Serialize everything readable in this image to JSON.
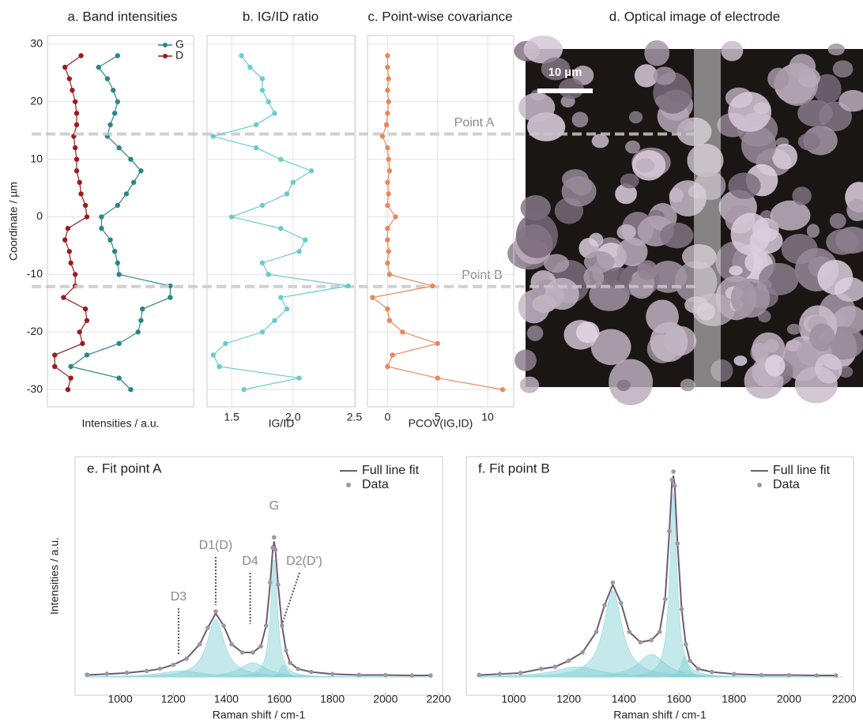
{
  "chart_data": [
    {
      "type": "profile",
      "title": "a. Band intensities",
      "ylabel": "Coordinate / µm",
      "xlabel": "Intensities / a.u.",
      "y": [
        28,
        26,
        24,
        22,
        20,
        18,
        16,
        14,
        12,
        10,
        8,
        6,
        4,
        2,
        0,
        -2,
        -4,
        -6,
        -8,
        -10,
        -12,
        -14,
        -16,
        -18,
        -20,
        -22,
        -24,
        -26,
        -28,
        -30
      ],
      "series": [
        {
          "name": "G",
          "color": "#2a8686",
          "values": [
            4.8,
            3.5,
            4.1,
            4.5,
            4.8,
            4.6,
            4.3,
            4.1,
            4.9,
            5.7,
            6.4,
            5.9,
            5.4,
            4.8,
            3.7,
            3.7,
            4.3,
            4.6,
            4.8,
            4.9,
            8.4,
            8.4,
            6.5,
            6.4,
            6.2,
            4.9,
            2.7,
            1.6,
            4.9,
            5.7
          ]
        },
        {
          "name": "D",
          "color": "#9a1d1d",
          "values": [
            2.3,
            1.2,
            1.5,
            1.7,
            1.9,
            2.0,
            2.0,
            1.8,
            1.9,
            2.0,
            2.0,
            2.2,
            2.3,
            2.6,
            2.7,
            1.4,
            1.2,
            1.5,
            1.6,
            1.9,
            1.9,
            1.1,
            2.6,
            2.7,
            2.2,
            2.4,
            0.5,
            0.5,
            1.6,
            1.4
          ]
        }
      ],
      "xlim": [
        0,
        10
      ],
      "ylim": [
        -33,
        31.5
      ],
      "yticks": [
        -30,
        -20,
        -10,
        0,
        10,
        20,
        30
      ],
      "grid": true,
      "legend": "top-right",
      "annotations": [
        {
          "text": "Point A",
          "y": 14.4
        },
        {
          "text": "Point B",
          "y": -12.1
        }
      ]
    },
    {
      "type": "profile",
      "title": "b. IG/ID ratio",
      "xlabel": "IG/ID",
      "y": [
        28,
        26,
        24,
        22,
        20,
        18,
        16,
        14,
        12,
        10,
        8,
        6,
        4,
        2,
        0,
        -2,
        -4,
        -6,
        -8,
        -10,
        -12,
        -14,
        -16,
        -18,
        -20,
        -22,
        -24,
        -26,
        -28,
        -30
      ],
      "series": [
        {
          "color": "#6ccacd",
          "values": [
            1.58,
            1.65,
            1.75,
            1.75,
            1.8,
            1.85,
            1.7,
            1.35,
            1.7,
            1.9,
            2.15,
            2.0,
            1.95,
            1.75,
            1.5,
            1.9,
            2.1,
            2.05,
            1.75,
            1.8,
            2.45,
            1.9,
            1.95,
            1.85,
            1.75,
            1.45,
            1.35,
            1.4,
            2.05,
            1.6
          ]
        }
      ],
      "xlim": [
        1.3,
        2.51
      ],
      "xticks": [
        {
          "value": 1.5,
          "label": "1.5"
        },
        {
          "value": 2,
          "label": "2.0"
        },
        {
          "value": 2.5,
          "label": "2.5"
        }
      ],
      "ylim": [
        -33,
        31.5
      ],
      "grid": true
    },
    {
      "type": "profile",
      "title": "c. Point-wise covariance",
      "xlabel": "PCOV(IG,ID)",
      "y": [
        28,
        26,
        24,
        22,
        20,
        18,
        16,
        14,
        12,
        10,
        8,
        6,
        4,
        2,
        0,
        -2,
        -4,
        -6,
        -8,
        -10,
        -12,
        -14,
        -16,
        -18,
        -20,
        -22,
        -24,
        -26,
        -28,
        -30
      ],
      "series": [
        {
          "color": "#e9875a",
          "values": [
            0,
            0,
            0.1,
            0,
            0.1,
            0,
            -0.1,
            -0.5,
            0,
            0.1,
            0.2,
            0,
            0.1,
            0,
            0.8,
            0,
            0,
            0.1,
            0,
            0.2,
            4.5,
            -1.5,
            0,
            0.2,
            1.5,
            5,
            0.5,
            0,
            5,
            11.5
          ]
        }
      ],
      "xlim": [
        -2,
        12.6
      ],
      "xticks": [
        0,
        5,
        10
      ],
      "ylim": [
        -33,
        31.5
      ],
      "grid": true
    },
    {
      "type": "spectrum",
      "title": "e. Fit point A",
      "xlabel": "Raman shift / cm-1",
      "ylabel": "Intensities / a.u.",
      "x": [
        875,
        950,
        1025,
        1100,
        1150,
        1200,
        1250,
        1300,
        1330,
        1360,
        1390,
        1420,
        1460,
        1500,
        1530,
        1550,
        1565,
        1575,
        1580,
        1585,
        1595,
        1610,
        1625,
        1640,
        1670,
        1720,
        1800,
        1900,
        2000,
        2100,
        2170
      ],
      "series": [
        {
          "name": "Full line fit",
          "color": "#6e5a74",
          "values": [
            0.01,
            0.015,
            0.02,
            0.03,
            0.04,
            0.06,
            0.09,
            0.16,
            0.24,
            0.31,
            0.25,
            0.16,
            0.12,
            0.12,
            0.15,
            0.25,
            0.45,
            0.62,
            0.66,
            0.62,
            0.45,
            0.25,
            0.13,
            0.07,
            0.04,
            0.025,
            0.015,
            0.01,
            0.01,
            0.008,
            0.008
          ]
        },
        {
          "name": "Data",
          "color": "#9a9a9a",
          "values": [
            0.012,
            0.016,
            0.021,
            0.03,
            0.041,
            0.06,
            0.09,
            0.16,
            0.24,
            0.32,
            0.25,
            0.16,
            0.12,
            0.12,
            0.15,
            0.25,
            0.46,
            0.63,
            0.68,
            0.62,
            0.45,
            0.25,
            0.13,
            0.07,
            0.04,
            0.025,
            0.015,
            0.011,
            0.01,
            0.008,
            0.008
          ]
        }
      ],
      "peaks": [
        {
          "x": 1230,
          "height": 0.03,
          "hwhm": 100
        },
        {
          "x": 1360,
          "height": 0.28,
          "hwhm": 40
        },
        {
          "x": 1500,
          "height": 0.07,
          "hwhm": 60
        },
        {
          "x": 1580,
          "height": 0.58,
          "hwhm": 15
        },
        {
          "x": 1615,
          "height": 0.06,
          "hwhm": 15
        }
      ],
      "peak_labels": [
        {
          "text": "D3",
          "x": 1220
        },
        {
          "text": "D1(D)",
          "x": 1360
        },
        {
          "text": "D4",
          "x": 1490
        },
        {
          "text": "G",
          "x": 1580
        },
        {
          "text": "D2(D')",
          "x": 1640
        }
      ],
      "xlim": [
        830,
        2215
      ],
      "xticks": [
        1000,
        1200,
        1400,
        1600,
        1800,
        2000,
        2200
      ],
      "ylim": [
        -0.088,
        1.073
      ],
      "legend": "top-right"
    },
    {
      "type": "spectrum",
      "title": "f. Fit point B",
      "xlabel": "Raman shift / cm-1",
      "x": [
        875,
        950,
        1025,
        1100,
        1150,
        1200,
        1250,
        1300,
        1330,
        1360,
        1390,
        1420,
        1460,
        1500,
        1530,
        1550,
        1565,
        1575,
        1580,
        1585,
        1595,
        1610,
        1625,
        1640,
        1670,
        1720,
        1800,
        1900,
        2000,
        2100,
        2170
      ],
      "series": [
        {
          "name": "Full line fit",
          "color": "#6e5a74",
          "values": [
            0.01,
            0.015,
            0.02,
            0.04,
            0.05,
            0.08,
            0.12,
            0.22,
            0.35,
            0.45,
            0.36,
            0.22,
            0.17,
            0.18,
            0.22,
            0.38,
            0.7,
            0.95,
            0.98,
            0.93,
            0.65,
            0.33,
            0.16,
            0.08,
            0.04,
            0.025,
            0.015,
            0.01,
            0.01,
            0.008,
            0.008
          ]
        },
        {
          "name": "Data",
          "color": "#9a9a9a",
          "values": [
            0.011,
            0.016,
            0.021,
            0.04,
            0.05,
            0.08,
            0.12,
            0.22,
            0.35,
            0.46,
            0.36,
            0.22,
            0.17,
            0.18,
            0.22,
            0.38,
            0.71,
            0.96,
            1.0,
            0.93,
            0.65,
            0.33,
            0.16,
            0.08,
            0.04,
            0.025,
            0.015,
            0.01,
            0.01,
            0.008,
            0.008
          ]
        }
      ],
      "peaks": [
        {
          "x": 1230,
          "height": 0.05,
          "hwhm": 100
        },
        {
          "x": 1360,
          "height": 0.42,
          "hwhm": 40
        },
        {
          "x": 1500,
          "height": 0.11,
          "hwhm": 60
        },
        {
          "x": 1580,
          "height": 0.9,
          "hwhm": 15
        },
        {
          "x": 1620,
          "height": 0.1,
          "hwhm": 15
        }
      ],
      "xlim": [
        828,
        2234
      ],
      "xticks": [
        1000,
        1200,
        1400,
        1600,
        1800,
        2000,
        2200
      ],
      "ylim": [
        -0.088,
        1.073
      ],
      "legend": "top-right"
    }
  ],
  "image": {
    "title": "d. Optical image of electrode",
    "scale_bar": "10 µm"
  }
}
